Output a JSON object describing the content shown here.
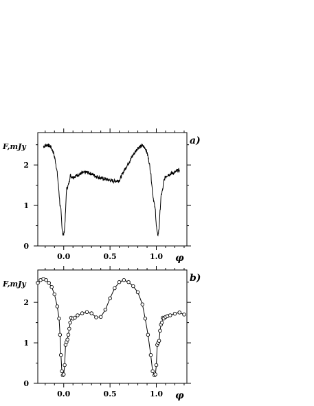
{
  "chart_data": [
    {
      "type": "line",
      "panel_label": "a)",
      "ylabel": "F,mJy",
      "xlabel": "φ",
      "xlim": [
        -0.28,
        1.33
      ],
      "ylim": [
        0,
        2.8
      ],
      "x_ticks": [
        0.0,
        0.5,
        1.0
      ],
      "x_tick_labels": [
        "0.0",
        "0.5",
        "1.0"
      ],
      "y_ticks": [
        0,
        1,
        2
      ],
      "y_tick_labels": [
        "0",
        "1",
        "2"
      ],
      "grid": false,
      "series_color": "#000000",
      "marker": "none",
      "x": [
        -0.22,
        -0.18,
        -0.14,
        -0.11,
        -0.09,
        -0.07,
        -0.05,
        -0.04,
        -0.03,
        -0.02,
        -0.01,
        0.0,
        0.01,
        0.02,
        0.03,
        0.04,
        0.05,
        0.06,
        0.07,
        0.08,
        0.1,
        0.12,
        0.15,
        0.2,
        0.25,
        0.3,
        0.35,
        0.4,
        0.45,
        0.5,
        0.55,
        0.6,
        0.65,
        0.7,
        0.75,
        0.8,
        0.85,
        0.88,
        0.9,
        0.92,
        0.94,
        0.96,
        0.98,
        0.99,
        1.0,
        1.01,
        1.02,
        1.03,
        1.04,
        1.05,
        1.06,
        1.07,
        1.08,
        1.1,
        1.12,
        1.15,
        1.2,
        1.25
      ],
      "y": [
        2.45,
        2.5,
        2.45,
        2.3,
        2.1,
        1.8,
        1.3,
        1.0,
        0.88,
        0.5,
        0.3,
        0.28,
        0.45,
        0.85,
        1.4,
        1.45,
        1.5,
        1.6,
        1.75,
        1.72,
        1.7,
        1.72,
        1.75,
        1.8,
        1.82,
        1.78,
        1.72,
        1.68,
        1.65,
        1.62,
        1.6,
        1.62,
        1.85,
        2.05,
        2.25,
        2.42,
        2.48,
        2.42,
        2.3,
        2.1,
        1.8,
        1.3,
        1.0,
        0.88,
        0.5,
        0.3,
        0.28,
        0.45,
        0.85,
        1.2,
        1.32,
        1.4,
        1.6,
        1.72,
        1.75,
        1.78,
        1.82,
        1.88
      ]
    },
    {
      "type": "line",
      "panel_label": "b)",
      "ylabel": "F,mJy",
      "xlabel": "φ",
      "xlim": [
        -0.28,
        1.33
      ],
      "ylim": [
        0,
        2.8
      ],
      "x_ticks": [
        0.0,
        0.5,
        1.0
      ],
      "x_tick_labels": [
        "0.0",
        "0.5",
        "1.0"
      ],
      "y_ticks": [
        0,
        1,
        2
      ],
      "y_tick_labels": [
        "0",
        "1",
        "2"
      ],
      "grid": false,
      "series_color": "#000000",
      "marker": "open-circle",
      "x": [
        -0.28,
        -0.25,
        -0.22,
        -0.19,
        -0.16,
        -0.13,
        -0.1,
        -0.07,
        -0.05,
        -0.04,
        -0.03,
        -0.02,
        -0.01,
        0.0,
        0.01,
        0.02,
        0.03,
        0.04,
        0.05,
        0.06,
        0.07,
        0.08,
        0.1,
        0.12,
        0.15,
        0.2,
        0.25,
        0.3,
        0.35,
        0.4,
        0.45,
        0.5,
        0.55,
        0.6,
        0.65,
        0.7,
        0.75,
        0.8,
        0.85,
        0.88,
        0.91,
        0.94,
        0.96,
        0.98,
        0.99,
        1.0,
        1.01,
        1.02,
        1.03,
        1.04,
        1.05,
        1.06,
        1.07,
        1.08,
        1.1,
        1.12,
        1.15,
        1.2,
        1.25,
        1.3
      ],
      "y": [
        2.48,
        2.55,
        2.58,
        2.55,
        2.48,
        2.38,
        2.2,
        1.9,
        1.6,
        1.2,
        0.7,
        0.3,
        0.2,
        0.22,
        0.45,
        0.95,
        1.02,
        1.08,
        1.2,
        1.35,
        1.5,
        1.62,
        1.6,
        1.62,
        1.68,
        1.73,
        1.76,
        1.73,
        1.63,
        1.64,
        1.82,
        2.1,
        2.35,
        2.5,
        2.55,
        2.5,
        2.4,
        2.25,
        1.95,
        1.6,
        1.2,
        0.7,
        0.3,
        0.2,
        0.22,
        0.45,
        0.95,
        1.0,
        1.05,
        1.3,
        1.45,
        1.5,
        1.62,
        1.6,
        1.64,
        1.66,
        1.68,
        1.72,
        1.75,
        1.7
      ]
    }
  ]
}
